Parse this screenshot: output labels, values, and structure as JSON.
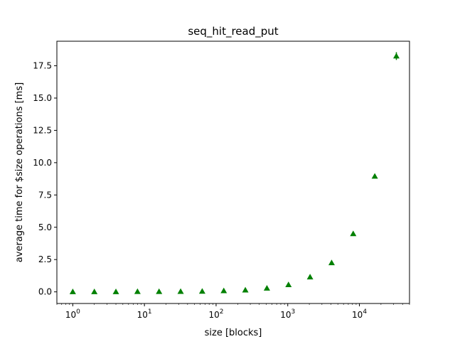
{
  "chart_data": {
    "type": "scatter",
    "title": "seq_hit_read_put",
    "xlabel": "size [blocks]",
    "ylabel": "average time for $size operations [ms]",
    "xscale": "log",
    "xlim": [
      0.6,
      50000
    ],
    "ylim": [
      -0.9,
      19.4
    ],
    "grid": false,
    "marker": "triangle",
    "marker_color": "#008000",
    "x_ticks": [
      {
        "value": 1,
        "base": "10",
        "exp": "0"
      },
      {
        "value": 10,
        "base": "10",
        "exp": "1"
      },
      {
        "value": 100,
        "base": "10",
        "exp": "2"
      },
      {
        "value": 1000,
        "base": "10",
        "exp": "3"
      },
      {
        "value": 10000,
        "base": "10",
        "exp": "4"
      }
    ],
    "y_ticks": [
      {
        "value": 0,
        "label": "0.0"
      },
      {
        "value": 2.5,
        "label": "2.5"
      },
      {
        "value": 5,
        "label": "5.0"
      },
      {
        "value": 7.5,
        "label": "7.5"
      },
      {
        "value": 10,
        "label": "10.0"
      },
      {
        "value": 12.5,
        "label": "12.5"
      },
      {
        "value": 15,
        "label": "15.0"
      },
      {
        "value": 17.5,
        "label": "17.5"
      }
    ],
    "series": [
      {
        "x": [
          1,
          2,
          4,
          8,
          16,
          32,
          64,
          128,
          256,
          512,
          1024,
          2048,
          4096,
          8192,
          16384,
          32768
        ],
        "y": [
          0.01,
          0.01,
          0.01,
          0.02,
          0.02,
          0.03,
          0.04,
          0.08,
          0.14,
          0.28,
          0.55,
          1.15,
          2.25,
          4.5,
          8.95,
          18.25
        ],
        "err": [
          0,
          0,
          0,
          0,
          0,
          0,
          0,
          0,
          0,
          0,
          0,
          0,
          0,
          0,
          0,
          0.3
        ]
      }
    ]
  }
}
